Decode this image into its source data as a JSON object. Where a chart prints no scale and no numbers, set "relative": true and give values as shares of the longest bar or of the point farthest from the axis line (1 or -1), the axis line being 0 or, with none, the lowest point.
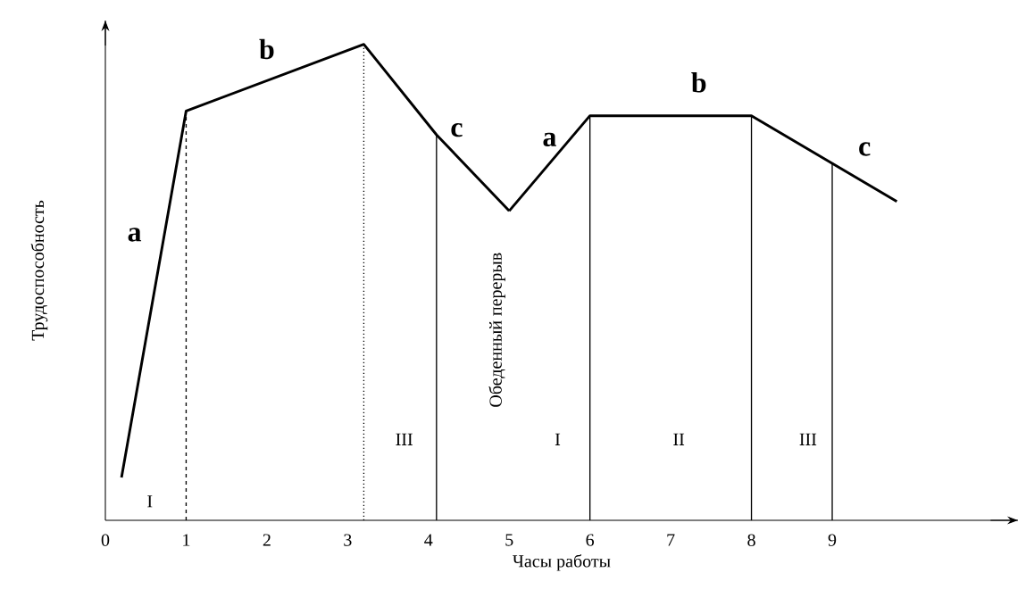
{
  "chart_data": {
    "type": "line",
    "relative": true,
    "xlabel": "Часы работы",
    "ylabel": "Трудоспособность",
    "xlim": [
      0,
      11.3
    ],
    "xticks": [
      0,
      1,
      2,
      3,
      4,
      5,
      6,
      7,
      8,
      9
    ],
    "tick_labels": "x",
    "series": [
      {
        "color": "#000000",
        "x": [
          0.2,
          1,
          3.2,
          4.1,
          5
        ],
        "values": [
          0.09,
          0.86,
          1,
          0.81,
          0.65
        ]
      },
      {
        "color": "#000000",
        "x": [
          5,
          6,
          8,
          9.8
        ],
        "values": [
          0.65,
          0.85,
          0.85,
          0.67
        ]
      }
    ],
    "ref_lines": [
      {
        "axis": "x",
        "value": 1,
        "line_style": "dashed"
      },
      {
        "axis": "x",
        "value": 3.2,
        "line_style": "dotted"
      },
      {
        "axis": "x",
        "value": 4.1,
        "line_style": "solid"
      },
      {
        "axis": "x",
        "value": 6,
        "line_style": "solid"
      },
      {
        "axis": "x",
        "value": 8,
        "line_style": "solid"
      },
      {
        "axis": "x",
        "value": 9,
        "line_style": "solid"
      }
    ],
    "annotations": [
      "a",
      "b",
      "c",
      "a",
      "b",
      "c",
      "I",
      "III",
      "I",
      "II",
      "III",
      "Обеденный перерыв"
    ]
  }
}
